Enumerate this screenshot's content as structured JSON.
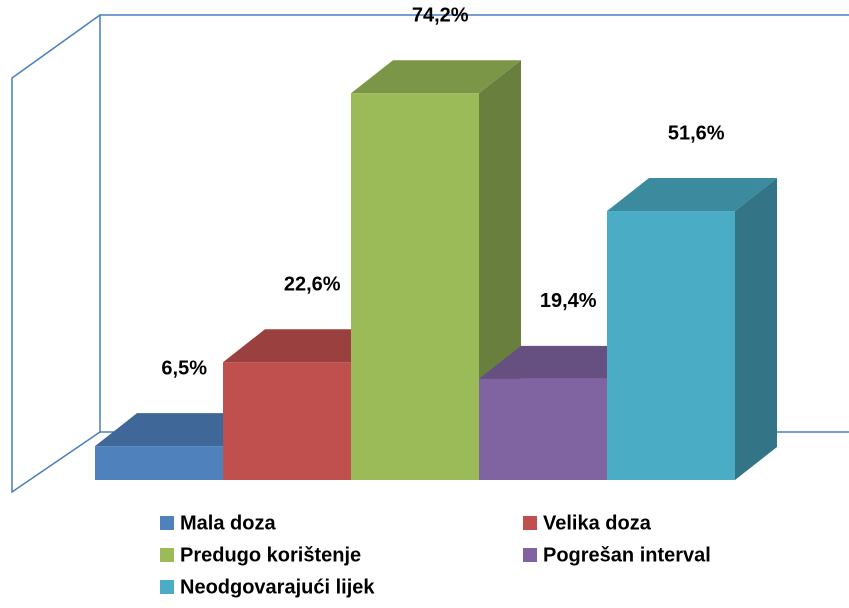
{
  "chart_data": {
    "type": "bar3d",
    "series": [
      {
        "name": "Mala doza",
        "color": "#4f81bd",
        "values": [
          6.5
        ],
        "value_labels": [
          "6,5%"
        ]
      },
      {
        "name": "Velika doza",
        "color": "#c0504d",
        "values": [
          22.6
        ],
        "value_labels": [
          "22,6%"
        ]
      },
      {
        "name": "Predugo korištenje",
        "color": "#9bbb59",
        "values": [
          74.2
        ],
        "value_labels": [
          "74,2%"
        ]
      },
      {
        "name": "Pogrešan interval",
        "color": "#8064a2",
        "values": [
          19.4
        ],
        "value_labels": [
          "19,4%"
        ]
      },
      {
        "name": "Neodgovarajući lijek",
        "color": "#4bacc6",
        "values": [
          51.6
        ],
        "value_labels": [
          "51,6%"
        ]
      }
    ],
    "ylim": [
      0,
      80
    ]
  }
}
